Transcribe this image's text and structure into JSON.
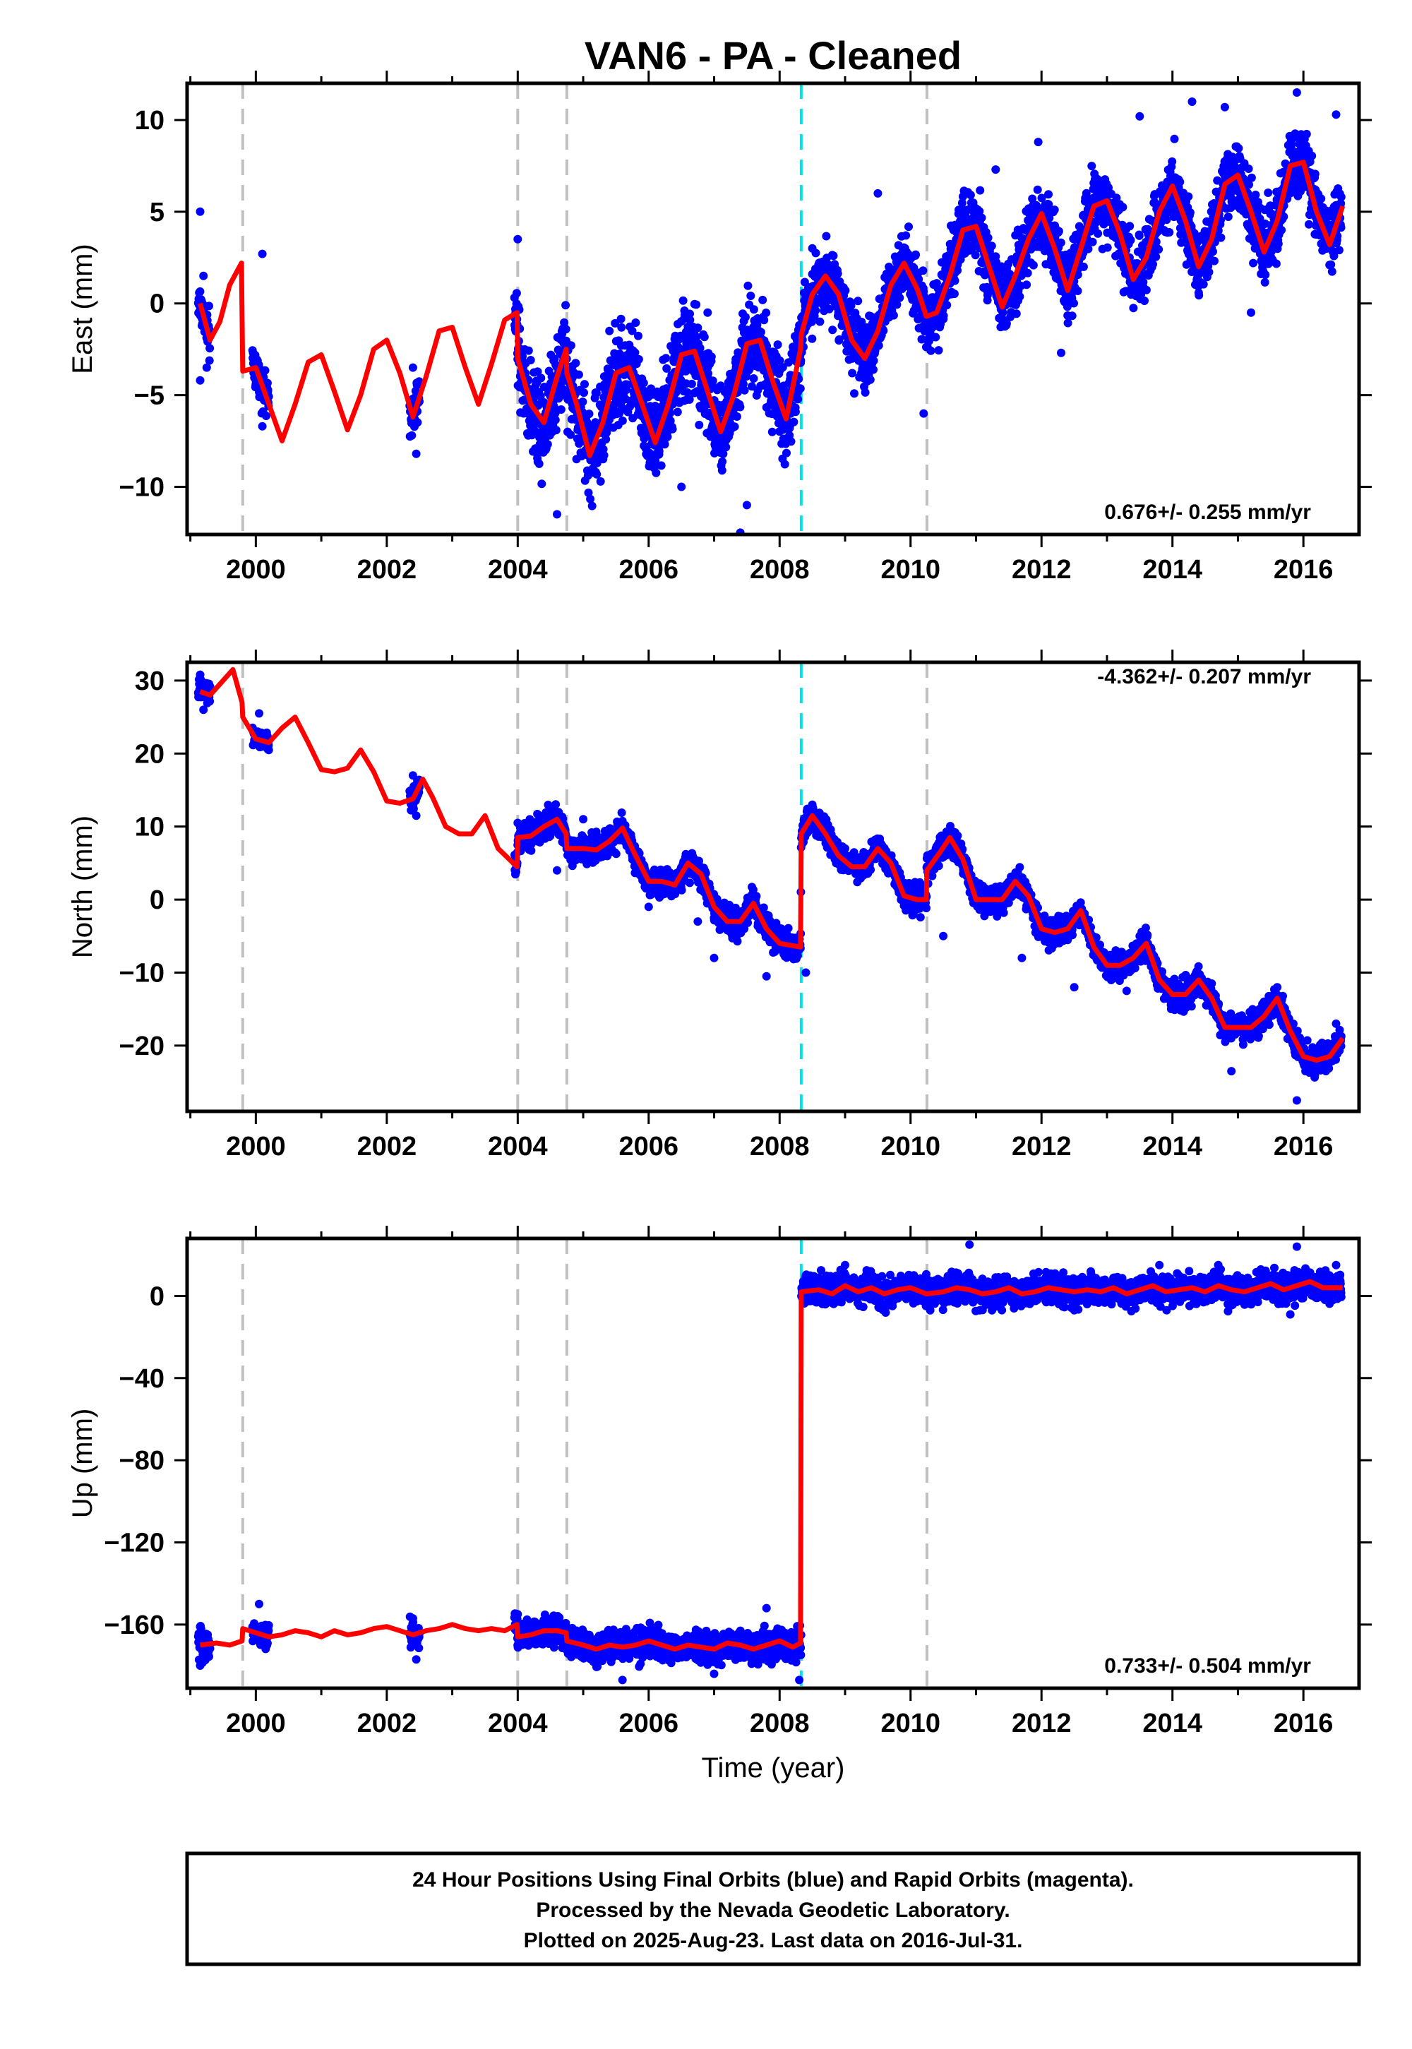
{
  "title": "VAN6  - PA - Cleaned",
  "xlabel": "Time (year)",
  "footer": {
    "lines": [
      "24 Hour Positions Using Final Orbits (blue) and Rapid Orbits (magenta).",
      "Processed by the Nevada Geodetic Laboratory.",
      "Plotted on 2025-Aug-23. Last data on 2016-Jul-31."
    ]
  },
  "colors": {
    "data_points": "#0000ff",
    "model_fit": "#ff0000",
    "equipment_change": "#c0c0c0",
    "earthquake": "#00e5e5"
  },
  "chart_data": [
    {
      "type": "scatter",
      "panel": "east",
      "ylabel": "East (mm)",
      "rate_label": "0.676+/- 0.255 mm/yr",
      "xlim": [
        1998.95,
        2016.85
      ],
      "ylim": [
        -12.6,
        12.0
      ],
      "yticks": [
        -10,
        -5,
        0,
        5,
        10
      ],
      "xticks": [
        2000,
        2002,
        2004,
        2006,
        2008,
        2010,
        2012,
        2014,
        2016
      ],
      "equipment_changes": [
        1999.8,
        2004.0,
        2004.75,
        2010.25
      ],
      "earthquakes": [
        2008.33
      ],
      "data_points": [
        [
          1999.15,
          5.0
        ],
        [
          1999.15,
          -4.2
        ],
        [
          1999.2,
          1.5
        ],
        [
          1999.25,
          -3.5
        ],
        [
          2000.1,
          2.7
        ],
        [
          2000.1,
          -6.7
        ],
        [
          2002.4,
          -3.5
        ],
        [
          2002.45,
          -8.2
        ],
        [
          2004.0,
          3.5
        ],
        [
          2004.6,
          -11.5
        ],
        [
          2005.4,
          -1.5
        ],
        [
          2006.5,
          -10.0
        ],
        [
          2006.9,
          -0.5
        ],
        [
          2007.4,
          -12.5
        ],
        [
          2007.5,
          -11.0
        ],
        [
          2008.5,
          3.0
        ],
        [
          2009.5,
          6.0
        ],
        [
          2010.2,
          -6.0
        ],
        [
          2011.3,
          7.3
        ],
        [
          2011.95,
          8.8
        ],
        [
          2012.3,
          -2.7
        ],
        [
          2013.5,
          10.2
        ],
        [
          2014.3,
          11.0
        ],
        [
          2014.8,
          10.7
        ],
        [
          2015.2,
          -0.5
        ],
        [
          2015.9,
          11.5
        ],
        [
          2016.5,
          10.3
        ]
      ],
      "model_x": [
        1999.15,
        1999.3,
        1999.45,
        1999.6,
        1999.78,
        1999.8,
        2000.0,
        2000.2,
        2000.4,
        2000.6,
        2000.8,
        2001.0,
        2001.2,
        2001.4,
        2001.6,
        2001.8,
        2002.0,
        2002.2,
        2002.4,
        2002.6,
        2002.8,
        2003.0,
        2003.2,
        2003.4,
        2003.6,
        2003.8,
        2003.99,
        2004.0,
        2004.2,
        2004.4,
        2004.6,
        2004.74,
        2004.75,
        2004.9,
        2005.1,
        2005.3,
        2005.5,
        2005.7,
        2005.9,
        2006.1,
        2006.3,
        2006.5,
        2006.7,
        2006.9,
        2007.1,
        2007.3,
        2007.5,
        2007.7,
        2007.9,
        2008.1,
        2008.32,
        2008.33,
        2008.5,
        2008.7,
        2008.9,
        2009.1,
        2009.3,
        2009.5,
        2009.7,
        2009.9,
        2010.1,
        2010.24,
        2010.25,
        2010.4,
        2010.6,
        2010.8,
        2011.0,
        2011.2,
        2011.4,
        2011.6,
        2011.8,
        2012.0,
        2012.2,
        2012.4,
        2012.6,
        2012.8,
        2013.0,
        2013.2,
        2013.4,
        2013.6,
        2013.8,
        2014.0,
        2014.2,
        2014.4,
        2014.6,
        2014.8,
        2015.0,
        2015.2,
        2015.4,
        2015.6,
        2015.8,
        2016.0,
        2016.2,
        2016.4,
        2016.6
      ],
      "model_y": [
        0.0,
        -2.0,
        -1.0,
        1.0,
        2.2,
        -3.7,
        -3.5,
        -5.5,
        -7.5,
        -5.5,
        -3.2,
        -2.8,
        -4.8,
        -6.9,
        -5.0,
        -2.5,
        -2.0,
        -3.8,
        -6.2,
        -4.0,
        -1.5,
        -1.3,
        -3.5,
        -5.5,
        -3.3,
        -0.9,
        -0.5,
        -3.0,
        -5.5,
        -6.5,
        -4.0,
        -2.5,
        -3.8,
        -5.5,
        -8.3,
        -6.5,
        -3.8,
        -3.5,
        -5.5,
        -7.6,
        -5.5,
        -2.8,
        -2.6,
        -4.8,
        -7.0,
        -5.0,
        -2.2,
        -2.0,
        -4.3,
        -6.3,
        -2.5,
        -1.7,
        0.5,
        1.5,
        0.5,
        -2.0,
        -3.0,
        -1.5,
        1.0,
        2.2,
        0.8,
        -0.7,
        -0.7,
        -0.5,
        1.5,
        4.0,
        4.2,
        2.0,
        -0.2,
        1.5,
        3.5,
        4.9,
        3.0,
        0.7,
        3.0,
        5.3,
        5.6,
        3.8,
        1.3,
        2.5,
        5.0,
        6.4,
        4.5,
        2.0,
        3.5,
        6.5,
        7.0,
        5.0,
        2.8,
        4.5,
        7.5,
        7.7,
        5.0,
        3.2,
        5.3
      ]
    },
    {
      "type": "scatter",
      "panel": "north",
      "ylabel": "North (mm)",
      "rate_label": "-4.362+/- 0.207 mm/yr",
      "xlim": [
        1998.95,
        2016.85
      ],
      "ylim": [
        -29.0,
        32.5
      ],
      "yticks": [
        -20,
        -10,
        0,
        10,
        20,
        30
      ],
      "xticks": [
        2000,
        2002,
        2004,
        2006,
        2008,
        2010,
        2012,
        2014,
        2016
      ],
      "equipment_changes": [
        1999.8,
        2004.0,
        2004.75,
        2010.25
      ],
      "earthquakes": [
        2008.33
      ],
      "data_points": [
        [
          1999.15,
          30.8
        ],
        [
          1999.2,
          26.0
        ],
        [
          2000.05,
          25.5
        ],
        [
          2002.4,
          17.0
        ],
        [
          2002.45,
          11.5
        ],
        [
          2004.0,
          10.5
        ],
        [
          2004.6,
          4.0
        ],
        [
          2005.0,
          11.0
        ],
        [
          2006.0,
          -1.0
        ],
        [
          2006.75,
          -3.0
        ],
        [
          2007.0,
          -8.0
        ],
        [
          2007.8,
          -10.5
        ],
        [
          2008.4,
          -10.0
        ],
        [
          2008.5,
          13.0
        ],
        [
          2009.0,
          7.0
        ],
        [
          2010.5,
          -5.0
        ],
        [
          2010.6,
          9.0
        ],
        [
          2011.7,
          -8.0
        ],
        [
          2012.5,
          -12.0
        ],
        [
          2013.3,
          -12.5
        ],
        [
          2013.5,
          -5.0
        ],
        [
          2014.6,
          -11.5
        ],
        [
          2014.9,
          -23.5
        ],
        [
          2015.6,
          -12.0
        ],
        [
          2015.9,
          -27.5
        ],
        [
          2016.5,
          -17.0
        ]
      ],
      "model_x": [
        1999.15,
        1999.3,
        1999.5,
        1999.65,
        1999.79,
        1999.8,
        2000.0,
        2000.2,
        2000.4,
        2000.6,
        2000.8,
        2001.0,
        2001.2,
        2001.4,
        2001.6,
        2001.8,
        2002.0,
        2002.2,
        2002.4,
        2002.55,
        2002.7,
        2002.9,
        2003.1,
        2003.3,
        2003.5,
        2003.7,
        2003.99,
        2004.0,
        2004.2,
        2004.4,
        2004.6,
        2004.74,
        2004.75,
        2005.0,
        2005.2,
        2005.4,
        2005.6,
        2005.8,
        2006.0,
        2006.2,
        2006.4,
        2006.6,
        2006.8,
        2007.0,
        2007.2,
        2007.4,
        2007.6,
        2007.8,
        2008.0,
        2008.32,
        2008.33,
        2008.5,
        2008.7,
        2008.9,
        2009.1,
        2009.3,
        2009.5,
        2009.7,
        2009.9,
        2010.1,
        2010.24,
        2010.25,
        2010.45,
        2010.6,
        2010.8,
        2011.0,
        2011.2,
        2011.4,
        2011.6,
        2011.8,
        2012.0,
        2012.2,
        2012.4,
        2012.6,
        2012.8,
        2013.0,
        2013.2,
        2013.4,
        2013.6,
        2013.8,
        2014.0,
        2014.2,
        2014.4,
        2014.6,
        2014.8,
        2015.0,
        2015.2,
        2015.4,
        2015.6,
        2015.8,
        2016.0,
        2016.2,
        2016.4,
        2016.6
      ],
      "model_y": [
        28.5,
        28.0,
        30.0,
        31.5,
        27.0,
        25.0,
        22.0,
        21.5,
        23.5,
        25.0,
        21.5,
        17.8,
        17.5,
        18.0,
        20.5,
        17.5,
        13.5,
        13.2,
        13.8,
        16.5,
        14.0,
        10.0,
        9.0,
        9.0,
        11.5,
        7.0,
        4.5,
        8.5,
        8.7,
        10.0,
        11.0,
        9.0,
        7.0,
        7.0,
        6.8,
        8.0,
        9.8,
        6.0,
        2.5,
        2.5,
        2.0,
        5.0,
        3.5,
        -1.0,
        -3.0,
        -3.0,
        -0.5,
        -4.0,
        -6.0,
        -6.5,
        9.0,
        11.5,
        9.0,
        6.0,
        4.5,
        4.5,
        7.0,
        5.0,
        0.5,
        0.0,
        0.0,
        4.0,
        6.5,
        8.5,
        5.5,
        0.0,
        0.0,
        0.0,
        2.5,
        0.5,
        -4.0,
        -4.5,
        -4.0,
        -1.5,
        -6.5,
        -9.0,
        -9.0,
        -8.0,
        -6.0,
        -11.0,
        -13.0,
        -13.0,
        -11.0,
        -13.5,
        -17.5,
        -17.5,
        -17.5,
        -16.0,
        -13.5,
        -18.0,
        -21.5,
        -22.0,
        -21.5,
        -19.0
      ]
    },
    {
      "type": "scatter",
      "panel": "up",
      "ylabel": "Up (mm)",
      "rate_label": "0.733+/- 0.504 mm/yr",
      "xlim": [
        1998.95,
        2016.85
      ],
      "ylim": [
        -191,
        28
      ],
      "yticks": [
        -160,
        -120,
        -80,
        -40,
        0
      ],
      "xticks": [
        2000,
        2002,
        2004,
        2006,
        2008,
        2010,
        2012,
        2014,
        2016
      ],
      "equipment_changes": [
        1999.8,
        2004.0,
        2004.75,
        2010.25
      ],
      "earthquakes": [
        2008.33
      ],
      "data_points": [
        [
          1999.15,
          -161
        ],
        [
          1999.15,
          -180
        ],
        [
          2000.05,
          -150
        ],
        [
          2000.1,
          -168
        ],
        [
          2002.4,
          -157
        ],
        [
          2002.45,
          -177
        ],
        [
          2004.0,
          -155
        ],
        [
          2005.6,
          -187
        ],
        [
          2007.0,
          -184
        ],
        [
          2007.8,
          -152
        ],
        [
          2008.3,
          -187
        ],
        [
          2008.4,
          10
        ],
        [
          2009.0,
          15
        ],
        [
          2010.3,
          -7
        ],
        [
          2010.9,
          25
        ],
        [
          2012.5,
          -7
        ],
        [
          2013.8,
          15
        ],
        [
          2014.7,
          15
        ],
        [
          2015.8,
          -9
        ],
        [
          2015.9,
          24
        ],
        [
          2016.5,
          15
        ]
      ],
      "model_x": [
        1999.15,
        1999.4,
        1999.6,
        1999.79,
        1999.8,
        2000.0,
        2000.2,
        2000.4,
        2000.6,
        2000.8,
        2001.0,
        2001.2,
        2001.4,
        2001.6,
        2001.8,
        2002.0,
        2002.2,
        2002.4,
        2002.6,
        2002.8,
        2003.0,
        2003.2,
        2003.4,
        2003.6,
        2003.8,
        2003.99,
        2004.0,
        2004.2,
        2004.4,
        2004.6,
        2004.74,
        2004.75,
        2005.0,
        2005.2,
        2005.4,
        2005.6,
        2005.8,
        2006.0,
        2006.2,
        2006.4,
        2006.6,
        2006.8,
        2007.0,
        2007.2,
        2007.4,
        2007.6,
        2007.8,
        2008.0,
        2008.2,
        2008.32,
        2008.33,
        2008.6,
        2008.8,
        2009.0,
        2009.2,
        2009.4,
        2009.6,
        2009.8,
        2010.0,
        2010.24,
        2010.25,
        2010.5,
        2010.7,
        2010.9,
        2011.1,
        2011.3,
        2011.5,
        2011.7,
        2011.9,
        2012.1,
        2012.3,
        2012.5,
        2012.7,
        2012.9,
        2013.1,
        2013.3,
        2013.5,
        2013.7,
        2013.9,
        2014.1,
        2014.3,
        2014.5,
        2014.7,
        2014.9,
        2015.1,
        2015.3,
        2015.5,
        2015.7,
        2015.9,
        2016.1,
        2016.3,
        2016.6
      ],
      "model_y": [
        -170,
        -169,
        -170,
        -168,
        -162,
        -164,
        -166,
        -165,
        -163,
        -164,
        -166,
        -163,
        -165,
        -164,
        -162,
        -161,
        -163,
        -165,
        -163,
        -162,
        -160,
        -162,
        -163,
        -162,
        -163,
        -160,
        -166,
        -165,
        -163,
        -163,
        -164,
        -168,
        -170,
        -172,
        -170,
        -171,
        -170,
        -168,
        -170,
        -172,
        -170,
        -171,
        -172,
        -169,
        -170,
        -172,
        -170,
        -168,
        -171,
        -169,
        2,
        3,
        1,
        5,
        2,
        4,
        1,
        3,
        4,
        1,
        1,
        2,
        4,
        3,
        1,
        2,
        4,
        1,
        2,
        4,
        3,
        2,
        3,
        2,
        4,
        1,
        3,
        5,
        2,
        3,
        4,
        2,
        5,
        3,
        2,
        4,
        6,
        3,
        5,
        7,
        4,
        4
      ],
      "jump": {
        "x": 2008.33,
        "from": -169,
        "to": 2
      }
    }
  ]
}
